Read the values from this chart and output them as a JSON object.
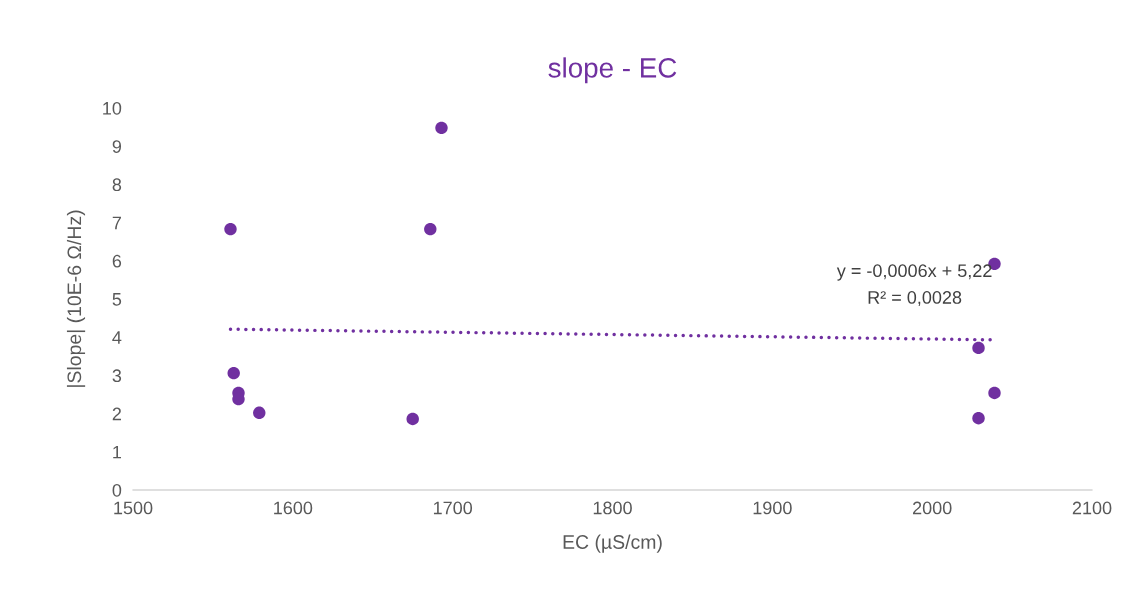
{
  "chart_data": {
    "type": "scatter",
    "title": "slope - EC",
    "xlabel": "EC (µS/cm)",
    "ylabel": "|Slope| (10E-6 Ω/Hz)",
    "xlim": [
      1500,
      2100
    ],
    "xticks": [
      1500,
      1600,
      1700,
      1800,
      1900,
      2000,
      2100
    ],
    "ylim": [
      0,
      10
    ],
    "yticks": [
      0,
      1,
      2,
      3,
      4,
      5,
      6,
      7,
      8,
      9,
      10
    ],
    "grid": false,
    "series": [
      {
        "marker": "circle",
        "color": "#7030a0",
        "x": [
          1561,
          1563,
          1566,
          1566,
          1579,
          1675,
          1686,
          1693,
          2039,
          2029,
          2039,
          2029
        ],
        "values": [
          6.83,
          3.06,
          2.54,
          2.38,
          2.02,
          1.86,
          6.83,
          9.48,
          5.92,
          3.72,
          2.54,
          1.88
        ]
      },
      {
        "type": "line",
        "color": "#7030a0",
        "line_style": "dotted",
        "x": [
          1561,
          2038
        ],
        "values": [
          4.21,
          3.93
        ]
      }
    ],
    "annotations": [
      "y = -0,0006x + 5,22",
      "R² = 0,0028"
    ]
  }
}
